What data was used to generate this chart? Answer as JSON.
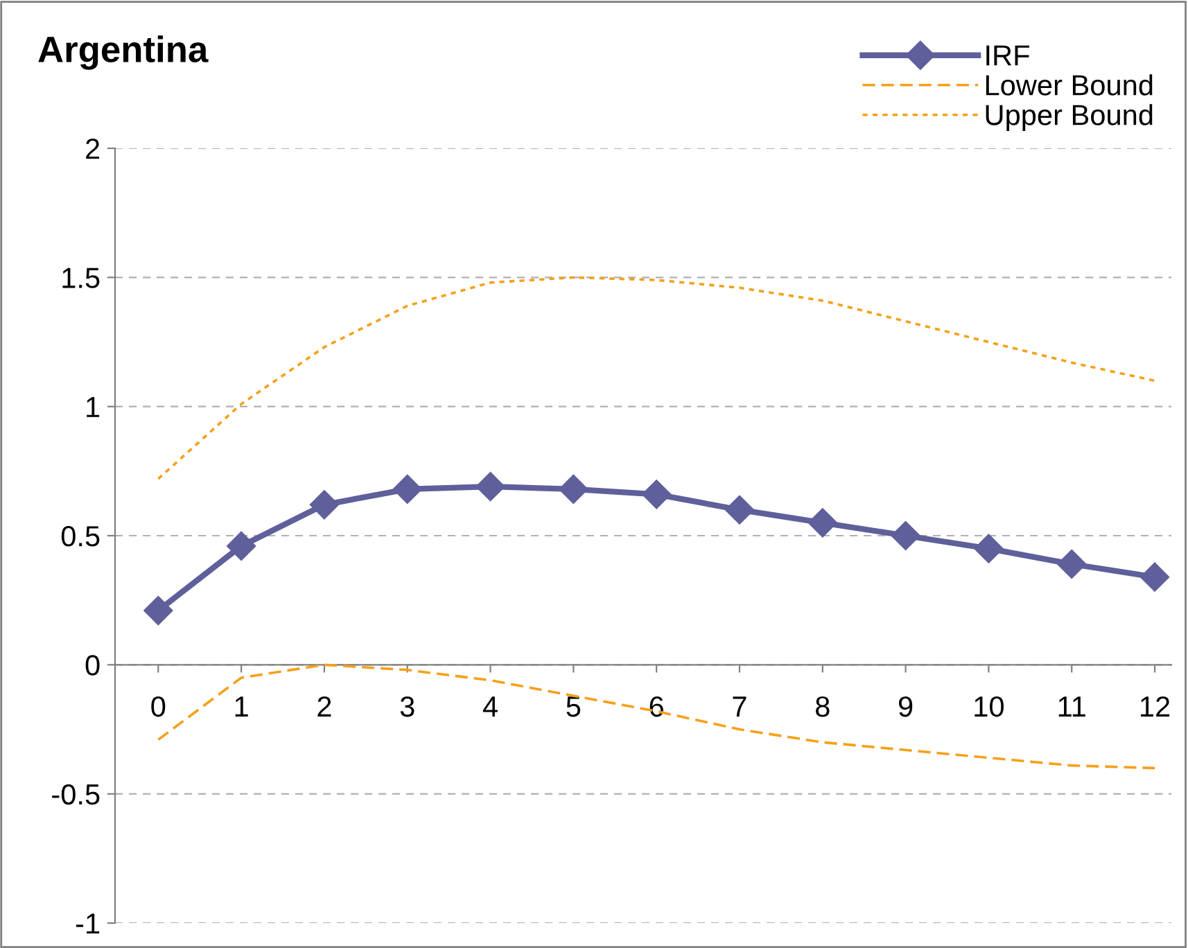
{
  "chart_data": {
    "type": "line",
    "title": "Argentina",
    "categories": [
      "0",
      "1",
      "2",
      "3",
      "4",
      "5",
      "6",
      "7",
      "8",
      "9",
      "10",
      "11",
      "12"
    ],
    "series": [
      {
        "name": "IRF",
        "color": "#5f5f9b",
        "marker": "diamond",
        "line_style": "solid",
        "values": [
          0.21,
          0.46,
          0.62,
          0.68,
          0.69,
          0.68,
          0.66,
          0.6,
          0.55,
          0.5,
          0.45,
          0.39,
          0.34
        ]
      },
      {
        "name": "Lower Bound",
        "color": "#f5a01a",
        "marker": "none",
        "line_style": "dashed",
        "values": [
          -0.29,
          -0.05,
          0.0,
          -0.02,
          -0.06,
          -0.12,
          -0.18,
          -0.25,
          -0.3,
          -0.33,
          -0.36,
          -0.39,
          -0.4
        ]
      },
      {
        "name": "Upper Bound",
        "color": "#f5a01a",
        "marker": "none",
        "line_style": "dotted",
        "values": [
          0.72,
          1.01,
          1.23,
          1.39,
          1.48,
          1.5,
          1.49,
          1.46,
          1.41,
          1.33,
          1.25,
          1.17,
          1.1
        ]
      }
    ],
    "ylim": [
      -1,
      2
    ],
    "yticks": [
      -1,
      -0.5,
      0,
      0.5,
      1,
      1.5,
      2
    ],
    "grid": "y",
    "legend": "top right"
  }
}
